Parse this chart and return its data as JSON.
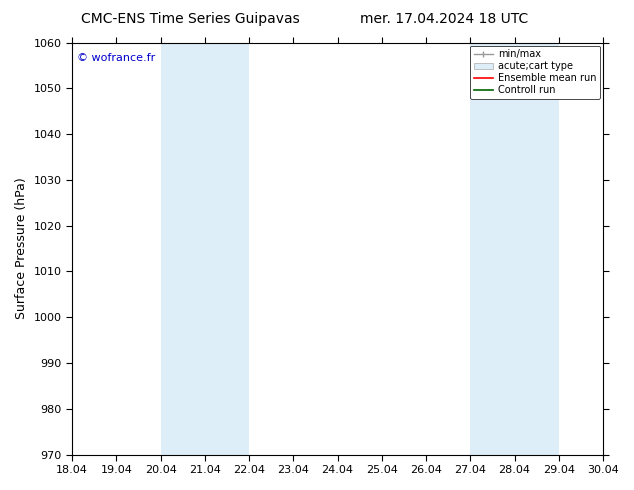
{
  "title_left": "CMC-ENS Time Series Guipavas",
  "title_right": "mer. 17.04.2024 18 UTC",
  "ylabel": "Surface Pressure (hPa)",
  "ylim": [
    970,
    1060
  ],
  "yticks": [
    970,
    980,
    990,
    1000,
    1010,
    1020,
    1030,
    1040,
    1050,
    1060
  ],
  "xlim_start": 18.04,
  "xlim_end": 30.04,
  "xticks": [
    18.04,
    19.04,
    20.04,
    21.04,
    22.04,
    23.04,
    24.04,
    25.04,
    26.04,
    27.04,
    28.04,
    29.04,
    30.04
  ],
  "xtick_labels": [
    "18.04",
    "19.04",
    "20.04",
    "21.04",
    "22.04",
    "23.04",
    "24.04",
    "25.04",
    "26.04",
    "27.04",
    "28.04",
    "29.04",
    "30.04"
  ],
  "shaded_bands": [
    {
      "x_start": 20.04,
      "x_end": 22.04
    },
    {
      "x_start": 27.04,
      "x_end": 29.04
    }
  ],
  "shade_color": "#ddeef8",
  "watermark_text": "© wofrance.fr",
  "watermark_color": "#0000cc",
  "legend_items": [
    {
      "label": "min/max"
    },
    {
      "label": "acute;cart type"
    },
    {
      "label": "Ensemble mean run"
    },
    {
      "label": "Controll run"
    }
  ],
  "bg_color": "#ffffff",
  "plot_bg_color": "#ffffff",
  "title_fontsize": 10,
  "label_fontsize": 9,
  "tick_fontsize": 8,
  "legend_fontsize": 7
}
